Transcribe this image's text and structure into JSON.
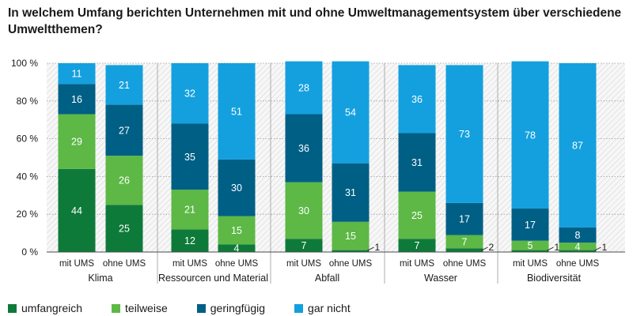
{
  "chart_data": {
    "type": "bar",
    "stacked": true,
    "title": "In welchem Umfang berichten Unternehmen mit und ohne Umweltmanagementsystem über verschiedene Umweltthemen?",
    "ylim": [
      0,
      100
    ],
    "yticks": [
      {
        "value": 0,
        "label": "0 %"
      },
      {
        "value": 20,
        "label": "20 %"
      },
      {
        "value": 40,
        "label": "40 %"
      },
      {
        "value": 60,
        "label": "60 %"
      },
      {
        "value": 80,
        "label": "80 %"
      },
      {
        "value": 100,
        "label": "100 %"
      }
    ],
    "groups": [
      {
        "label": "Klima",
        "categories": [
          "mit UMS",
          "ohne UMS"
        ]
      },
      {
        "label": "Ressourcen und Material",
        "categories": [
          "mit UMS",
          "ohne UMS"
        ]
      },
      {
        "label": "Abfall",
        "categories": [
          "mit UMS",
          "ohne UMS"
        ]
      },
      {
        "label": "Wasser",
        "categories": [
          "mit UMS",
          "ohne UMS"
        ]
      },
      {
        "label": "Biodiversität",
        "categories": [
          "mit UMS",
          "ohne UMS"
        ]
      }
    ],
    "series": [
      {
        "name": "umfangreich",
        "color": "#0e7a3a",
        "labelColor": "#ffffff",
        "values": [
          44,
          25,
          12,
          4,
          7,
          1,
          7,
          2,
          1,
          1
        ]
      },
      {
        "name": "teilweise",
        "color": "#5db846",
        "labelColor": "#ffffff",
        "values": [
          29,
          26,
          21,
          15,
          30,
          15,
          25,
          7,
          5,
          4
        ]
      },
      {
        "name": "geringfügig",
        "color": "#005f85",
        "labelColor": "#ffffff",
        "values": [
          16,
          27,
          35,
          30,
          36,
          31,
          31,
          17,
          17,
          8
        ]
      },
      {
        "name": "gar nicht",
        "color": "#14a0de",
        "labelColor": "#ffffff",
        "values": [
          11,
          21,
          32,
          51,
          28,
          54,
          36,
          73,
          78,
          87
        ]
      }
    ],
    "outside_labels": [
      {
        "bar": 5,
        "series": 0,
        "text": "1"
      },
      {
        "bar": 7,
        "series": 0,
        "text": "2"
      },
      {
        "bar": 8,
        "series": 0,
        "text": "1"
      },
      {
        "bar": 9,
        "series": 0,
        "text": "1"
      }
    ],
    "legend_position": "bottom-left",
    "grid": true
  }
}
